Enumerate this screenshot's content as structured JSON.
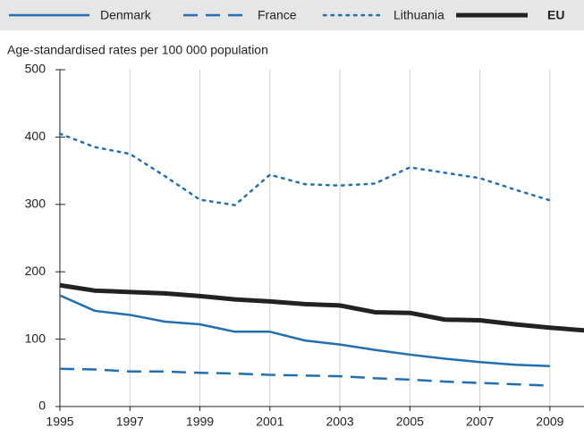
{
  "chart_data": {
    "type": "line",
    "y_axis_label": "Age-standardised rates per 100 000 population",
    "x": [
      1995,
      1996,
      1997,
      1998,
      1999,
      2000,
      2001,
      2002,
      2003,
      2004,
      2005,
      2006,
      2007,
      2008,
      2009,
      2010
    ],
    "series": [
      {
        "name": "Denmark",
        "color": "#1f6fb2",
        "style": "solid",
        "width": 2.5,
        "values": [
          165,
          142,
          136,
          126,
          122,
          111,
          111,
          98,
          92,
          84,
          77,
          71,
          66,
          62,
          60,
          null
        ]
      },
      {
        "name": "France",
        "color": "#1f6fb2",
        "style": "dashed",
        "width": 2.5,
        "values": [
          56,
          55,
          52,
          52,
          50,
          49,
          47,
          46,
          45,
          42,
          40,
          37,
          35,
          33,
          31,
          null
        ]
      },
      {
        "name": "Lithuania",
        "color": "#1f6fb2",
        "style": "dotted",
        "width": 2.5,
        "values": [
          405,
          385,
          375,
          342,
          307,
          299,
          344,
          330,
          328,
          331,
          355,
          347,
          339,
          322,
          306,
          null
        ]
      },
      {
        "name": "EU",
        "color": "#222222",
        "style": "solid",
        "width": 5,
        "values": [
          180,
          172,
          170,
          168,
          164,
          159,
          156,
          152,
          150,
          140,
          139,
          129,
          128,
          122,
          117,
          113
        ]
      }
    ],
    "xlim": [
      1995,
      2010
    ],
    "xticks": [
      1995,
      1997,
      1999,
      2001,
      2003,
      2005,
      2007,
      2009
    ],
    "ylim": [
      0,
      500
    ],
    "yticks": [
      0,
      100,
      200,
      300,
      400,
      500
    ],
    "grid": "x",
    "legend": "top"
  }
}
